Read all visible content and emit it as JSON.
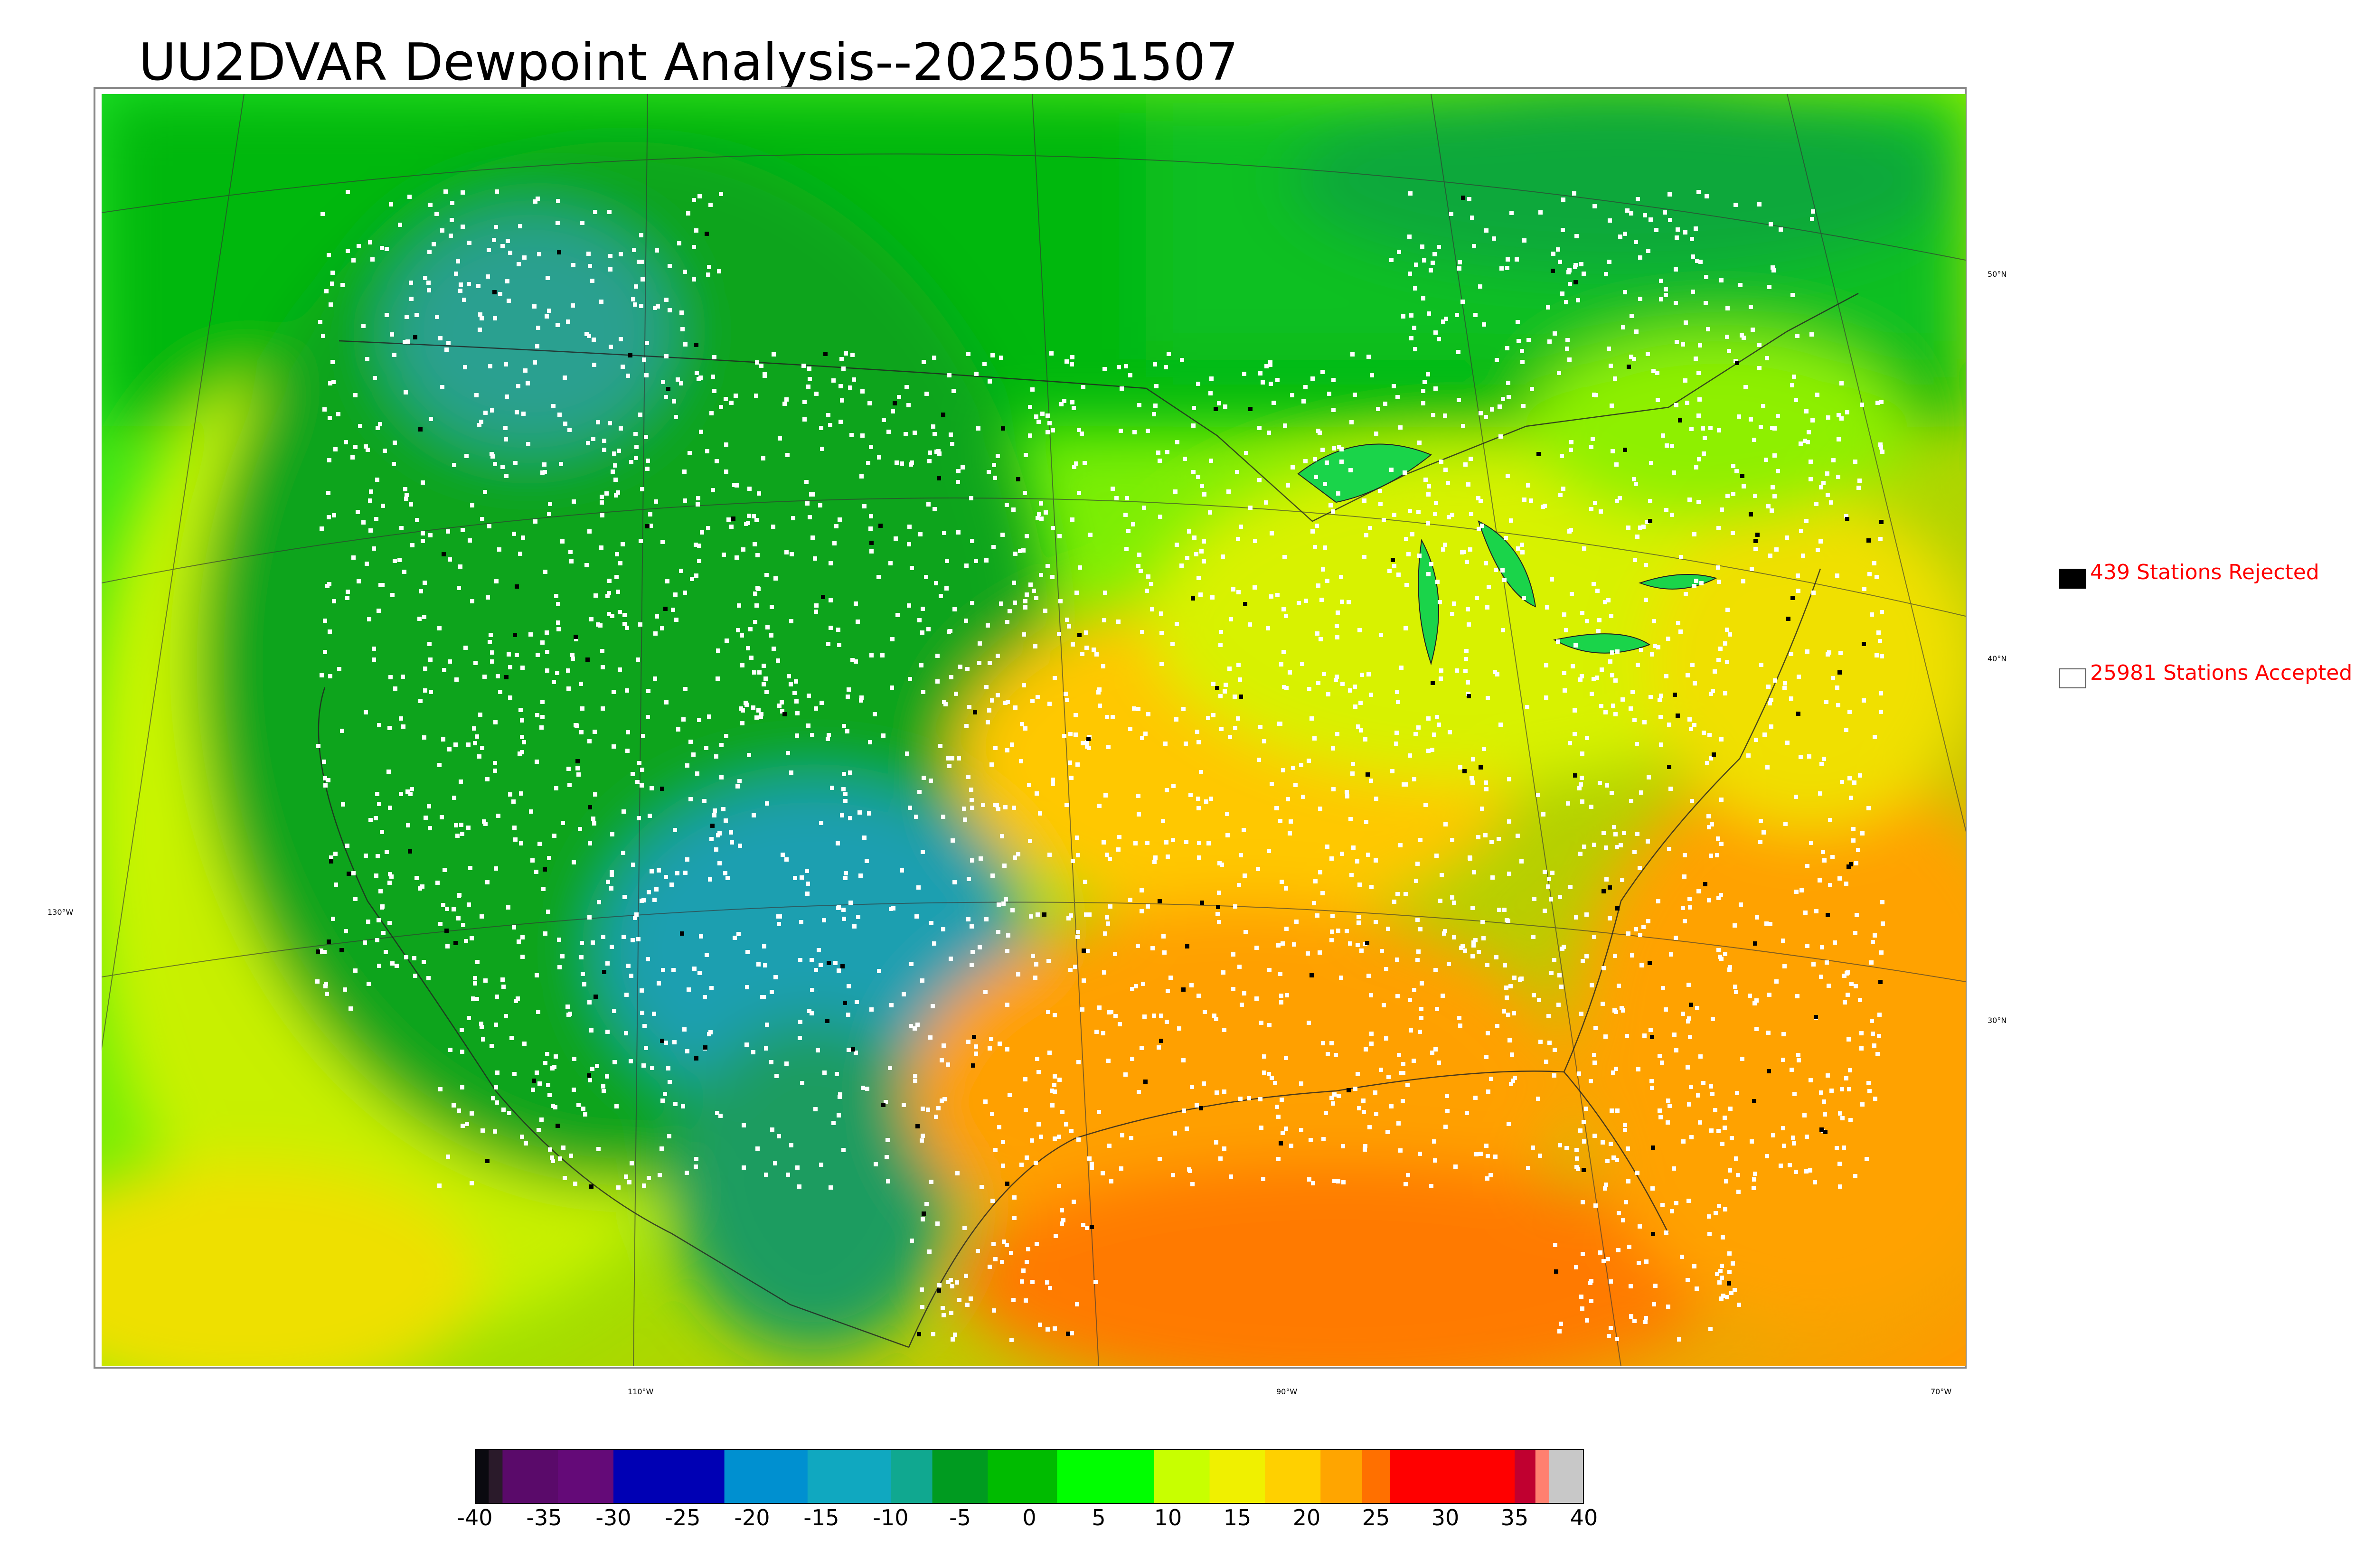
{
  "title": "UU2DVAR Dewpoint Analysis--2025051507",
  "map": {
    "projection": "lambert-conformal",
    "region": "CONUS",
    "parameter": "dewpoint",
    "station_marker_colors": {
      "accepted": "#ffffff",
      "rejected": "#000000"
    },
    "lat_labels": [
      {
        "text": "50°N"
      },
      {
        "text": "40°N"
      },
      {
        "text": "30°N"
      }
    ],
    "lon_labels": [
      {
        "text": "130°W"
      },
      {
        "text": "110°W"
      },
      {
        "text": "90°W"
      },
      {
        "text": "70°W"
      }
    ]
  },
  "legend": {
    "rejected": {
      "label": "439 Stations Rejected",
      "swatch_color": "#000000"
    },
    "accepted": {
      "label": "25981 Stations Accepted",
      "swatch_color": "#ffffff"
    }
  },
  "colorbar": {
    "min": -40,
    "max": 40,
    "ticks": [
      "-40",
      "-35",
      "-30",
      "-25",
      "-20",
      "-15",
      "-10",
      "-5",
      "0",
      "5",
      "10",
      "15",
      "20",
      "25",
      "30",
      "35",
      "40"
    ],
    "colors": [
      {
        "from": -40,
        "to": -39,
        "color": "#0a0a10"
      },
      {
        "from": -39,
        "to": -38,
        "color": "#2a1a2a"
      },
      {
        "from": -38,
        "to": -34,
        "color": "#5a0a6a"
      },
      {
        "from": -34,
        "to": -30,
        "color": "#640a78"
      },
      {
        "from": -30,
        "to": -22,
        "color": "#0000b4"
      },
      {
        "from": -22,
        "to": -16,
        "color": "#0090d0"
      },
      {
        "from": -16,
        "to": -10,
        "color": "#10a8c0"
      },
      {
        "from": -10,
        "to": -7,
        "color": "#10a890"
      },
      {
        "from": -7,
        "to": -3,
        "color": "#009b20"
      },
      {
        "from": -3,
        "to": 2,
        "color": "#00bb00"
      },
      {
        "from": 2,
        "to": 9,
        "color": "#00ff00"
      },
      {
        "from": 9,
        "to": 13,
        "color": "#c8ff00"
      },
      {
        "from": 13,
        "to": 17,
        "color": "#f0f000"
      },
      {
        "from": 17,
        "to": 21,
        "color": "#ffd000"
      },
      {
        "from": 21,
        "to": 24,
        "color": "#ffa500"
      },
      {
        "from": 24,
        "to": 26,
        "color": "#ff7000"
      },
      {
        "from": 26,
        "to": 35,
        "color": "#ff0000"
      },
      {
        "from": 35,
        "to": 36.5,
        "color": "#c00030"
      },
      {
        "from": 36.5,
        "to": 37.5,
        "color": "#ff8070"
      },
      {
        "from": 37.5,
        "to": 40,
        "color": "#c8c8c8"
      }
    ]
  }
}
